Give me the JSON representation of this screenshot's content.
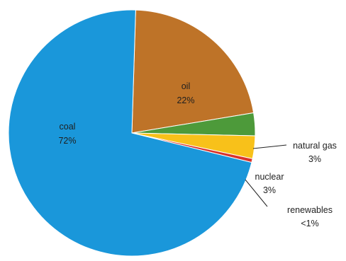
{
  "chart_data": {
    "type": "pie",
    "title": "",
    "slices": [
      {
        "name": "oil",
        "value": 22,
        "label_value": "22%",
        "color": "#BE7328"
      },
      {
        "name": "natural gas",
        "value": 3,
        "label_value": "3%",
        "color": "#4D9A3A"
      },
      {
        "name": "nuclear",
        "value": 3,
        "label_value": "3%",
        "color": "#F8C11A"
      },
      {
        "name": "renewables",
        "value": 0.5,
        "label_value": "<1%",
        "color": "#D9332B"
      },
      {
        "name": "coal",
        "value": 72,
        "label_value": "72%",
        "color": "#1A97DA"
      }
    ]
  }
}
